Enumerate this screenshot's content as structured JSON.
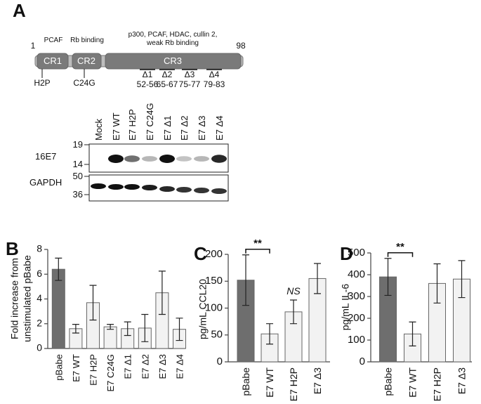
{
  "panel_a": {
    "label": "A",
    "domain": {
      "start": "1",
      "end": "98",
      "regions": [
        {
          "name": "CR1",
          "annotation": [
            "PCAF"
          ]
        },
        {
          "name": "CR2",
          "annotation": [
            "Rb binding"
          ]
        },
        {
          "name": "CR3",
          "annotation": [
            "p300, PCAF, HDAC, cullin 2,",
            "weak Rb binding"
          ]
        }
      ],
      "mutations": [
        "H2P",
        "C24G"
      ],
      "deletions": [
        {
          "name": "Δ1",
          "range": "52-56"
        },
        {
          "name": "Δ2",
          "range": "65-67"
        },
        {
          "name": "Δ3",
          "range": "75-77"
        },
        {
          "name": "Δ4",
          "range": "79-83"
        }
      ]
    },
    "blot": {
      "lanes": [
        "Mock",
        "E7 WT",
        "E7 H2P",
        "E7 C24G",
        "E7 Δ1",
        "E7 Δ2",
        "E7 Δ3",
        "E7 Δ4"
      ],
      "rows": [
        {
          "name": "16E7",
          "markers": [
            "19",
            "14"
          ]
        },
        {
          "name": "GAPDH",
          "markers": [
            "50",
            "36"
          ]
        }
      ]
    }
  },
  "chart_data": [
    {
      "type": "bar",
      "panel_label": "B",
      "ylabel": [
        "Fold increase from",
        "unstimulated pBabe"
      ],
      "categories": [
        "pBabe",
        "E7 WT",
        "E7 H2P",
        "E7 C24G",
        "E7 Δ1",
        "E7 Δ2",
        "E7 Δ3",
        "E7 Δ4"
      ],
      "values": [
        6.4,
        1.6,
        3.7,
        1.75,
        1.6,
        1.65,
        4.5,
        1.55
      ],
      "errors": [
        0.9,
        0.35,
        1.4,
        0.2,
        0.55,
        1.1,
        1.75,
        0.9
      ],
      "colors": [
        "#6e6e6e",
        "#f2f2f2",
        "#f2f2f2",
        "#f2f2f2",
        "#f2f2f2",
        "#f2f2f2",
        "#f2f2f2",
        "#f2f2f2"
      ],
      "ylim": [
        0,
        8
      ],
      "yticks": [
        0,
        2,
        4,
        6,
        8
      ]
    },
    {
      "type": "bar",
      "panel_label": "C",
      "ylabel": [
        "pg/mL CCL20"
      ],
      "categories": [
        "pBabe",
        "E7 WT",
        "E7 H2P",
        "E7 Δ3"
      ],
      "values": [
        152,
        52,
        93,
        155
      ],
      "errors": [
        47,
        19,
        22,
        28
      ],
      "colors": [
        "#6e6e6e",
        "#f2f2f2",
        "#f2f2f2",
        "#f2f2f2"
      ],
      "significance": [
        null,
        "**",
        "NS",
        null
      ],
      "ylim": [
        0,
        200
      ],
      "yticks": [
        0,
        50,
        100,
        150,
        200
      ]
    },
    {
      "type": "bar",
      "panel_label": "D",
      "ylabel": [
        "pg/mL IL-6"
      ],
      "categories": [
        "pBabe",
        "E7 WT",
        "E7 H2P",
        "E7 Δ3"
      ],
      "values": [
        390,
        128,
        360,
        380
      ],
      "errors": [
        85,
        55,
        90,
        85
      ],
      "colors": [
        "#6e6e6e",
        "#f2f2f2",
        "#f2f2f2",
        "#f2f2f2"
      ],
      "significance": [
        null,
        "**",
        null,
        null
      ],
      "ylim": [
        0,
        500
      ],
      "yticks": [
        0,
        100,
        200,
        300,
        400,
        500
      ]
    }
  ]
}
